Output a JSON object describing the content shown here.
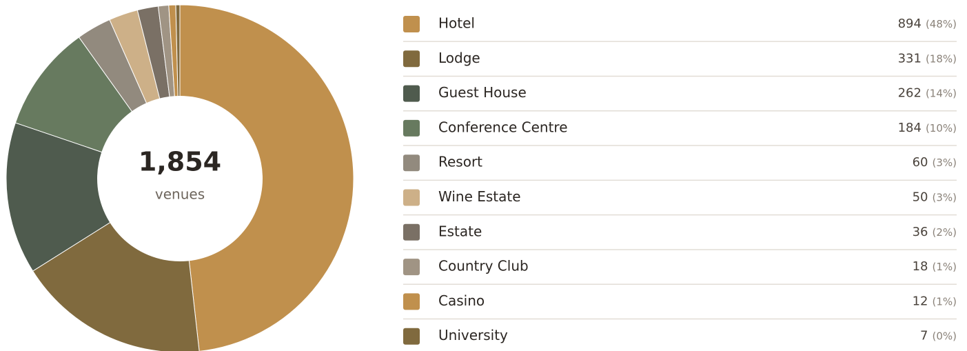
{
  "chart_data": {
    "type": "donut",
    "total": "1,854",
    "total_caption": "venues",
    "categories": [
      "Hotel",
      "Lodge",
      "Guest House",
      "Conference Centre",
      "Resort",
      "Wine Estate",
      "Estate",
      "Country Club",
      "Casino",
      "University"
    ],
    "values": [
      894,
      331,
      262,
      184,
      60,
      50,
      36,
      18,
      12,
      7
    ],
    "share_labels": [
      "(48%)",
      "(18%)",
      "(14%)",
      "(10%)",
      "(3%)",
      "(3%)",
      "(2%)",
      "(1%)",
      "(1%)",
      "(0%)"
    ],
    "colors": [
      "#c0904d",
      "#806a3e",
      "#4f5b4e",
      "#677a5f",
      "#928a7e",
      "#cdb088",
      "#7a7065",
      "#a09484",
      "#c0904d",
      "#806a3e"
    ]
  }
}
